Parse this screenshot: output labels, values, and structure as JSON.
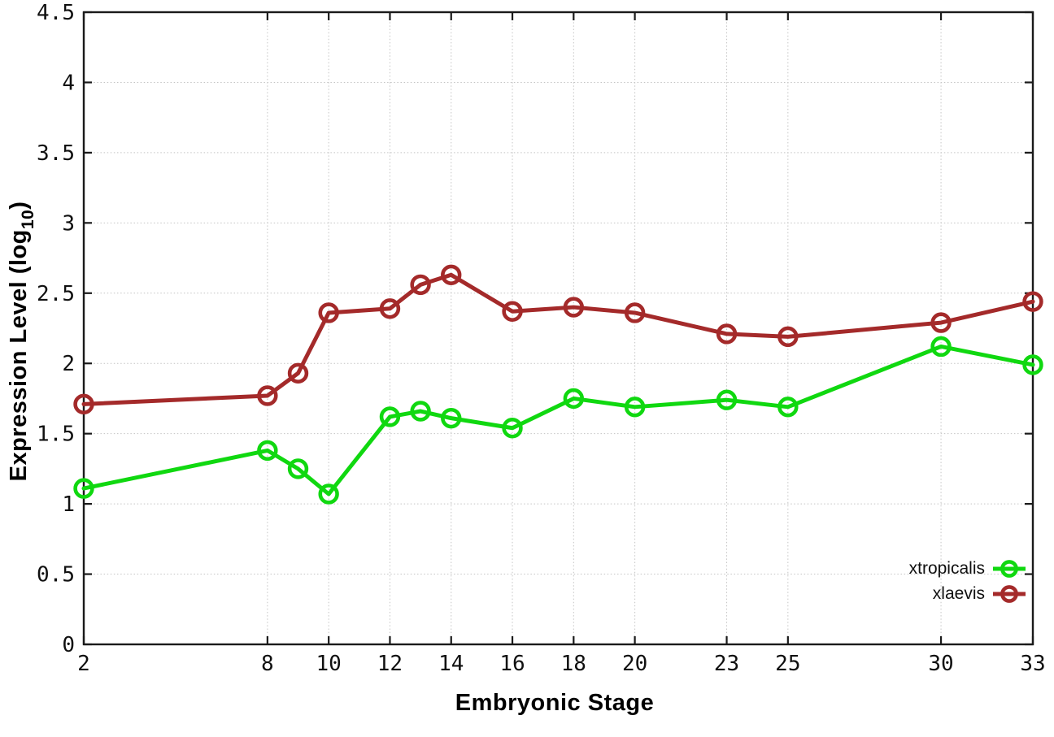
{
  "labels": {
    "y_title_main": "Expression Level (log",
    "y_title_sub": "10",
    "y_title_close": ")",
    "x_title": "Embryonic Stage"
  },
  "colors": {
    "axis": "#1a1a1a",
    "grid": "#c4c4c4",
    "xtropicalis": "#10d810",
    "xlaevis": "#a42a2a"
  },
  "chart_data": {
    "type": "line",
    "title": "",
    "xlabel": "Embryonic Stage",
    "ylabel": "Expression Level (log10)",
    "xlim": [
      2,
      33
    ],
    "ylim": [
      0,
      4.5
    ],
    "grid": true,
    "legend_position": "inside-bottom-right",
    "marker": "open-circle",
    "x_ticks": [
      2,
      8,
      10,
      12,
      14,
      16,
      18,
      20,
      23,
      25,
      30,
      33
    ],
    "y_ticks": [
      0,
      0.5,
      1,
      1.5,
      2,
      2.5,
      3,
      3.5,
      4,
      4.5
    ],
    "x": [
      2,
      8,
      9,
      10,
      12,
      13,
      14,
      16,
      18,
      20,
      23,
      25,
      30,
      33
    ],
    "series": [
      {
        "name": "xtropicalis",
        "color": "#10d810",
        "values": [
          1.11,
          1.38,
          1.25,
          1.07,
          1.62,
          1.66,
          1.61,
          1.54,
          1.75,
          1.69,
          1.74,
          1.69,
          2.12,
          1.99
        ]
      },
      {
        "name": "xlaevis",
        "color": "#a42a2a",
        "values": [
          1.71,
          1.77,
          1.93,
          2.36,
          2.39,
          2.56,
          2.63,
          2.37,
          2.4,
          2.36,
          2.21,
          2.19,
          2.29,
          2.44
        ]
      }
    ]
  }
}
